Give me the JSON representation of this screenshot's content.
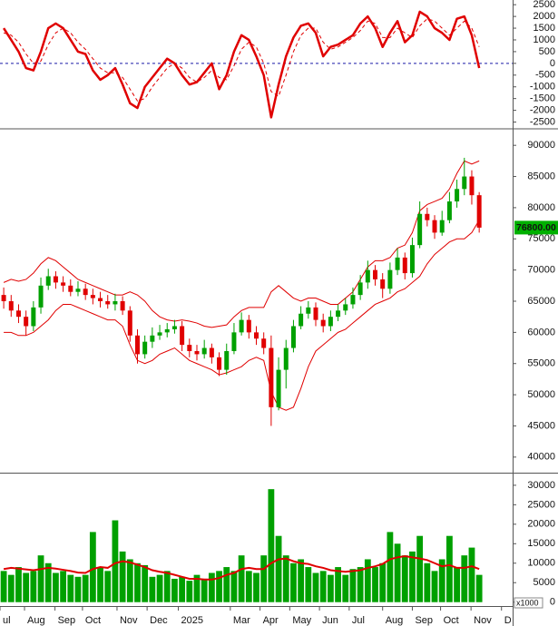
{
  "chart_data": [
    {
      "type": "line",
      "xlim": [
        -0.5,
        68.5
      ],
      "ylim": [
        -2750,
        2700
      ],
      "yticks": [
        2500,
        2000,
        1500,
        1000,
        500,
        0,
        -500,
        -1000,
        -1500,
        -2000,
        -2500
      ],
      "reference_lines": [
        {
          "value": 0,
          "color": "#1a1aa8",
          "dashed": true
        }
      ],
      "series": [
        {
          "color": "#e00000",
          "width": 2.5,
          "values": [
            1500,
            1000,
            500,
            -200,
            -300,
            500,
            1500,
            1700,
            1500,
            1000,
            500,
            400,
            -300,
            -700,
            -500,
            -200,
            -900,
            -1700,
            -1900,
            -1000,
            -600,
            -200,
            200,
            0,
            -500,
            -900,
            -800,
            -400,
            0,
            -1100,
            -500,
            500,
            1200,
            1000,
            300,
            -500,
            -2300,
            -900,
            300,
            1100,
            1600,
            1700,
            1300,
            300,
            700,
            800,
            1000,
            1200,
            1700,
            2000,
            1500,
            700,
            1300,
            1800,
            900,
            1200,
            2200,
            2000,
            1500,
            1300,
            1000,
            1900,
            2000,
            1200,
            -200
          ]
        },
        {
          "color": "#e00000",
          "width": 1,
          "dashed": true,
          "values": [
            1300,
            1200,
            900,
            400,
            0,
            100,
            800,
            1300,
            1500,
            1300,
            900,
            600,
            200,
            -200,
            -400,
            -400,
            -600,
            -1100,
            -1600,
            -1500,
            -1000,
            -600,
            -200,
            0,
            -200,
            -600,
            -800,
            -600,
            -300,
            -600,
            -700,
            -100,
            600,
            900,
            700,
            0,
            -1200,
            -1400,
            -500,
            500,
            1200,
            1500,
            1500,
            900,
            600,
            700,
            900,
            1100,
            1400,
            1800,
            1700,
            1100,
            1100,
            1500,
            1300,
            1100,
            1600,
            1900,
            1800,
            1500,
            1200,
            1500,
            1800,
            1500,
            700
          ]
        }
      ]
    },
    {
      "type": "candlestick",
      "xlim": [
        -0.5,
        68.5
      ],
      "ylim": [
        37500,
        92500
      ],
      "yticks": [
        90000,
        85000,
        80000,
        75000,
        70000,
        65000,
        60000,
        55000,
        50000,
        45000,
        40000
      ],
      "up_color": "#00a000",
      "down_color": "#e00000",
      "open": [
        66000,
        65000,
        63500,
        62500,
        61000,
        64000,
        67500,
        69000,
        68000,
        67500,
        66500,
        67000,
        66000,
        65500,
        65000,
        64500,
        65000,
        63500,
        59500,
        56500,
        58500,
        59500,
        60000,
        60500,
        61000,
        58000,
        57000,
        56500,
        57500,
        56000,
        54000,
        57000,
        60000,
        62000,
        60000,
        59000,
        57500,
        48000,
        54000,
        57500,
        61000,
        63000,
        64000,
        62000,
        61000,
        62500,
        63500,
        64500,
        66000,
        68000,
        70000,
        68500,
        67000,
        70000,
        72000,
        69500,
        74000,
        79000,
        78000,
        76000,
        78000,
        81000,
        83000,
        85000,
        82000
      ],
      "high": [
        67200,
        66000,
        64500,
        63500,
        65000,
        68800,
        70200,
        69800,
        69000,
        68500,
        68200,
        67800,
        67000,
        66500,
        66000,
        66200,
        65800,
        64200,
        60500,
        59500,
        60800,
        61200,
        61500,
        62000,
        61800,
        59000,
        58000,
        58800,
        58200,
        56800,
        58200,
        61500,
        63200,
        62800,
        61000,
        60000,
        59500,
        56000,
        58800,
        62000,
        64200,
        65000,
        64800,
        63000,
        63500,
        64500,
        65500,
        67200,
        69200,
        71500,
        70800,
        69500,
        71200,
        73500,
        72800,
        75200,
        81000,
        80000,
        78800,
        79500,
        82500,
        84500,
        88000,
        86000,
        82500
      ],
      "low": [
        63800,
        62500,
        61500,
        59500,
        60200,
        63000,
        66800,
        67000,
        66500,
        65800,
        65800,
        65200,
        64500,
        64000,
        63800,
        63500,
        62800,
        58500,
        55000,
        55800,
        57500,
        58800,
        59200,
        59800,
        57000,
        56000,
        55500,
        55800,
        55000,
        53000,
        53200,
        56500,
        59500,
        59000,
        58000,
        56500,
        45000,
        47500,
        51000,
        56800,
        60500,
        62200,
        61000,
        60000,
        60200,
        61800,
        62800,
        63800,
        65200,
        67000,
        67500,
        65500,
        66200,
        69200,
        68500,
        68800,
        73500,
        77000,
        75000,
        75500,
        77500,
        80000,
        82000,
        80500,
        76000
      ],
      "close": [
        65000,
        63500,
        62500,
        61000,
        64000,
        67500,
        69000,
        68000,
        67500,
        66500,
        67000,
        66000,
        65500,
        65000,
        64500,
        65000,
        63500,
        59500,
        56500,
        58500,
        59500,
        60000,
        60500,
        61000,
        58000,
        57000,
        56500,
        57500,
        56000,
        54000,
        57000,
        60000,
        62000,
        60000,
        59000,
        57500,
        48000,
        54000,
        57500,
        61000,
        63000,
        64000,
        62000,
        61000,
        62500,
        63500,
        64500,
        66000,
        68000,
        70000,
        68500,
        67000,
        70000,
        72000,
        69500,
        74000,
        79000,
        78000,
        76000,
        78000,
        81000,
        83000,
        85000,
        82000,
        76800
      ],
      "bands": [
        {
          "color": "#e00000",
          "values": [
            68000,
            68500,
            68200,
            68500,
            69500,
            71000,
            72000,
            71500,
            70500,
            69500,
            68500,
            68000,
            67500,
            67000,
            66500,
            66000,
            66000,
            66500,
            66000,
            65000,
            63500,
            62500,
            62000,
            61800,
            62000,
            61800,
            61500,
            61000,
            60800,
            61000,
            61200,
            62500,
            63500,
            64000,
            64000,
            64000,
            66500,
            67500,
            66500,
            65500,
            65000,
            65500,
            65500,
            65000,
            64500,
            64500,
            65500,
            66500,
            68500,
            70500,
            71500,
            71500,
            72000,
            73500,
            74000,
            76000,
            79500,
            80500,
            81000,
            81500,
            83000,
            85500,
            87500,
            87000,
            87500
          ]
        },
        {
          "color": "#e00000",
          "values": [
            60000,
            60000,
            59500,
            59500,
            60000,
            61000,
            62000,
            63500,
            64500,
            64500,
            64000,
            63500,
            63000,
            62500,
            62000,
            62000,
            61000,
            58000,
            55500,
            55000,
            55500,
            56500,
            57000,
            57500,
            56500,
            55500,
            55000,
            54500,
            54000,
            53200,
            53500,
            54000,
            54500,
            55500,
            56000,
            55500,
            50500,
            48000,
            47500,
            48000,
            51000,
            54500,
            57000,
            58000,
            59000,
            60000,
            60500,
            61500,
            62500,
            63500,
            64500,
            65000,
            65500,
            66500,
            67000,
            68000,
            69000,
            71000,
            72500,
            73500,
            74500,
            75000,
            75000,
            76000,
            78000
          ]
        }
      ],
      "last_value": {
        "value": 76800,
        "label": "76800.00"
      },
      "last_value_color": "#00b000"
    },
    {
      "type": "bar",
      "xlim": [
        -0.5,
        68.5
      ],
      "ylim": [
        -1000,
        33000
      ],
      "yticks": [
        30000,
        25000,
        20000,
        15000,
        10000,
        5000,
        0
      ],
      "color": "#00a000",
      "values": [
        8000,
        7000,
        9000,
        7500,
        8000,
        12000,
        10000,
        7500,
        8000,
        7000,
        6500,
        7000,
        18000,
        9000,
        8000,
        21000,
        13000,
        11000,
        10000,
        9500,
        6500,
        7000,
        8000,
        6000,
        6500,
        5500,
        7000,
        6000,
        7500,
        8000,
        9000,
        8000,
        12000,
        8000,
        7500,
        12000,
        29000,
        17000,
        12000,
        10000,
        11000,
        9000,
        7500,
        8000,
        7000,
        9000,
        7000,
        8500,
        9000,
        11000,
        9000,
        10000,
        18000,
        15000,
        12000,
        13000,
        17000,
        10000,
        8000,
        11000,
        17000,
        9000,
        12000,
        14000,
        7000
      ],
      "average": {
        "color": "#e00000",
        "values": [
          8500,
          8800,
          8600,
          8400,
          8200,
          8500,
          8800,
          8600,
          8300,
          8000,
          7600,
          7500,
          8500,
          9000,
          8800,
          10000,
          10500,
          10200,
          9600,
          9000,
          8200,
          7800,
          7500,
          7000,
          6500,
          6000,
          6000,
          5800,
          5800,
          6200,
          7000,
          7500,
          8500,
          8800,
          8500,
          8500,
          10000,
          11000,
          11200,
          10500,
          10000,
          9800,
          9200,
          8800,
          8200,
          8000,
          7800,
          8000,
          8200,
          8800,
          9200,
          9800,
          11000,
          11500,
          11800,
          11500,
          11200,
          10800,
          10000,
          9200,
          9500,
          8800,
          8800,
          9200,
          8500
        ]
      },
      "unit_label": "x1000",
      "xticks": [
        {
          "value": -0.5,
          "label": "ul"
        },
        {
          "value": 2.8,
          "label": "Aug"
        },
        {
          "value": 6.9,
          "label": "Sep"
        },
        {
          "value": 10.6,
          "label": "Oct"
        },
        {
          "value": 15.25,
          "label": "Nov"
        },
        {
          "value": 19.3,
          "label": "Dec"
        },
        {
          "value": 23.5,
          "label": "2025"
        },
        {
          "value": 30.5,
          "label": "Mar"
        },
        {
          "value": 34.5,
          "label": "Apr"
        },
        {
          "value": 38.5,
          "label": "May"
        },
        {
          "value": 42.5,
          "label": "Jun"
        },
        {
          "value": 46.5,
          "label": "Jul"
        },
        {
          "value": 51,
          "label": "Aug"
        },
        {
          "value": 55,
          "label": "Sep"
        },
        {
          "value": 58.8,
          "label": "Oct"
        },
        {
          "value": 62.9,
          "label": "Nov"
        },
        {
          "value": 67,
          "label": "D"
        }
      ]
    }
  ]
}
